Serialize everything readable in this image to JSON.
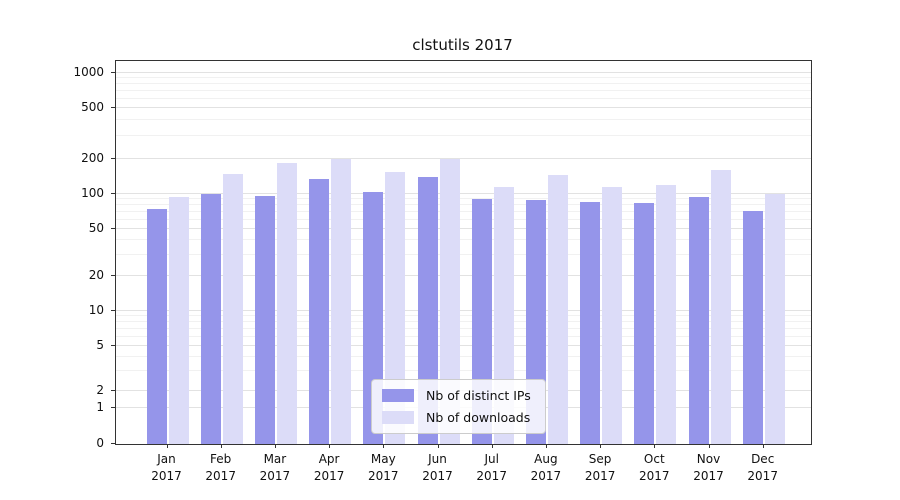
{
  "chart_data": {
    "type": "bar",
    "title": "clstutils 2017",
    "scale": "log",
    "legend_position": "lower center",
    "categories": [
      "Jan",
      "Feb",
      "Mar",
      "Apr",
      "May",
      "Jun",
      "Jul",
      "Aug",
      "Sep",
      "Oct",
      "Nov",
      "Dec"
    ],
    "category_year": "2017",
    "yticks": [
      0,
      1,
      2,
      5,
      10,
      20,
      50,
      100,
      200,
      500,
      1000
    ],
    "ylim": [
      0,
      1400
    ],
    "grid": true,
    "series": [
      {
        "name": "Nb of distinct IPs",
        "color": "#9595ea",
        "values": [
          75,
          100,
          97,
          135,
          105,
          140,
          90,
          88,
          85,
          83,
          95,
          72
        ]
      },
      {
        "name": "Nb of downloads",
        "color": "#dcdcf8",
        "values": [
          95,
          150,
          185,
          200,
          155,
          200,
          115,
          145,
          115,
          120,
          160,
          100
        ]
      }
    ]
  }
}
